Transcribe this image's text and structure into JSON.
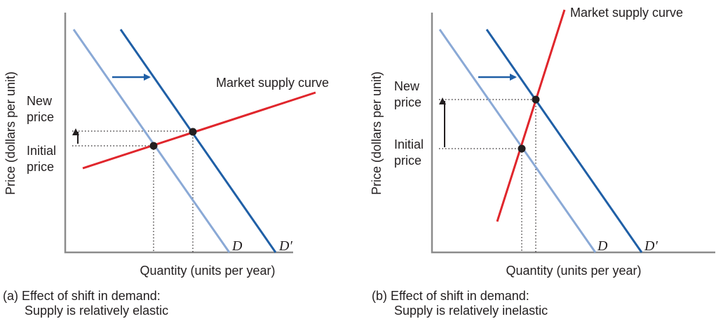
{
  "panels": [
    {
      "id": "a",
      "y_axis_label": "Price (dollars per unit)",
      "x_axis_label": "Quantity (units per year)",
      "caption_line1": "(a) Effect of shift in demand:",
      "caption_line2": "Supply is relatively elastic",
      "supply_label": "Market supply curve",
      "new_price_line1": "New",
      "new_price_line2": "price",
      "initial_price_line1": "Initial",
      "initial_price_line2": "price",
      "demand_label": "D",
      "demand_shifted_label": "D′"
    },
    {
      "id": "b",
      "y_axis_label": "Price (dollars per unit)",
      "x_axis_label": "Quantity (units per year)",
      "caption_line1": "(b) Effect of shift in demand:",
      "caption_line2": "Supply is relatively inelastic",
      "supply_label": "Market supply curve",
      "new_price_line1": "New",
      "new_price_line2": "price",
      "initial_price_line1": "Initial",
      "initial_price_line2": "price",
      "demand_label": "D",
      "demand_shifted_label": "D′"
    }
  ],
  "colors": {
    "supply": "#e0262c",
    "demand": "#8aa9d6",
    "demand_shifted": "#1f5fa6",
    "arrow_shift": "#1f5fa6",
    "price_arrow": "#231f20",
    "equilibrium_point": "#231f20",
    "axis": "#8c8c8c"
  }
}
